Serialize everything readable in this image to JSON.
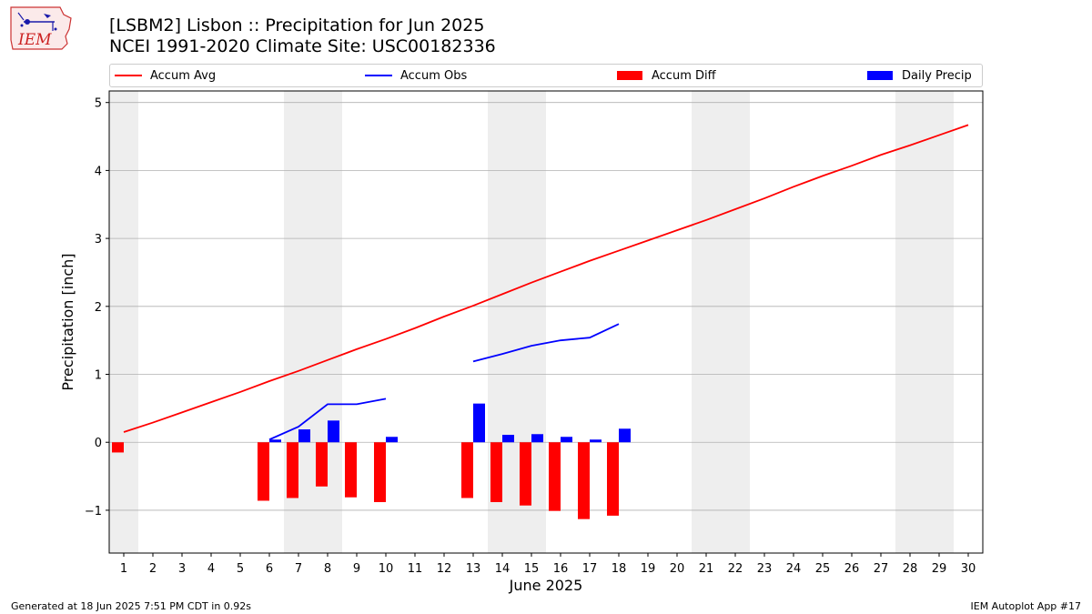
{
  "title_line1": "[LSBM2] Lisbon :: Precipitation for Jun 2025",
  "title_line2": "NCEI 1991-2020 Climate Site: USC00182336",
  "footer_left": "Generated at 18 Jun 2025 7:51 PM CDT in 0.92s",
  "footer_right": "IEM Autoplot App #17",
  "logo": {
    "text": "IEM",
    "icon": "iem-iowa-logo-icon"
  },
  "colors": {
    "accum_avg": "#ff0000",
    "accum_obs": "#0000ff",
    "accum_diff": "#ff0000",
    "daily_precip": "#0000ff",
    "weekend_shade": "#eeeeee",
    "grid": "#b0b0b0"
  },
  "chart_data": {
    "type": "bar",
    "xlabel": "June 2025",
    "ylabel": "Precipitation [inch]",
    "x": [
      1,
      2,
      3,
      4,
      5,
      6,
      7,
      8,
      9,
      10,
      11,
      12,
      13,
      14,
      15,
      16,
      17,
      18,
      19,
      20,
      21,
      22,
      23,
      24,
      25,
      26,
      27,
      28,
      29,
      30
    ],
    "xlim": [
      0.5,
      30.5
    ],
    "ylim": [
      -1.63,
      5.17
    ],
    "yticks": [
      -1,
      0,
      1,
      2,
      3,
      4,
      5
    ],
    "grid": "horizontal",
    "legend_position": "top",
    "weekend_shading": [
      [
        0.5,
        1.5
      ],
      [
        6.5,
        8.5
      ],
      [
        13.5,
        15.5
      ],
      [
        20.5,
        22.5
      ],
      [
        27.5,
        29.5
      ]
    ],
    "series": [
      {
        "name": "Accum Avg",
        "type": "line",
        "x": [
          1,
          2,
          3,
          4,
          5,
          6,
          7,
          8,
          9,
          10,
          11,
          12,
          13,
          14,
          15,
          16,
          17,
          18,
          19,
          20,
          21,
          22,
          23,
          24,
          25,
          26,
          27,
          28,
          29,
          30
        ],
        "values": [
          0.15,
          0.29,
          0.44,
          0.59,
          0.74,
          0.9,
          1.05,
          1.21,
          1.37,
          1.52,
          1.68,
          1.85,
          2.01,
          2.18,
          2.35,
          2.51,
          2.67,
          2.82,
          2.97,
          3.12,
          3.27,
          3.43,
          3.59,
          3.76,
          3.92,
          4.07,
          4.23,
          4.37,
          4.52,
          4.67
        ]
      },
      {
        "name": "Accum Obs",
        "type": "line",
        "segments": [
          {
            "x": [
              6,
              7,
              8,
              9,
              10
            ],
            "values": [
              0.04,
              0.23,
              0.56,
              0.56,
              0.64
            ]
          },
          {
            "x": [
              13,
              14,
              15,
              16,
              17,
              18
            ],
            "values": [
              1.19,
              1.3,
              1.42,
              1.5,
              1.54,
              1.74
            ]
          }
        ]
      },
      {
        "name": "Accum Diff",
        "type": "bar",
        "x": [
          1,
          6,
          7,
          8,
          9,
          10,
          13,
          14,
          15,
          16,
          17,
          18
        ],
        "values": [
          -0.15,
          -0.86,
          -0.82,
          -0.65,
          -0.81,
          -0.88,
          -0.82,
          -0.88,
          -0.93,
          -1.01,
          -1.13,
          -1.08
        ]
      },
      {
        "name": "Daily Precip",
        "type": "bar",
        "x": [
          6,
          7,
          8,
          10,
          13,
          14,
          15,
          16,
          17,
          18
        ],
        "values": [
          0.04,
          0.19,
          0.32,
          0.08,
          0.57,
          0.11,
          0.12,
          0.08,
          0.04,
          0.2
        ]
      }
    ]
  }
}
